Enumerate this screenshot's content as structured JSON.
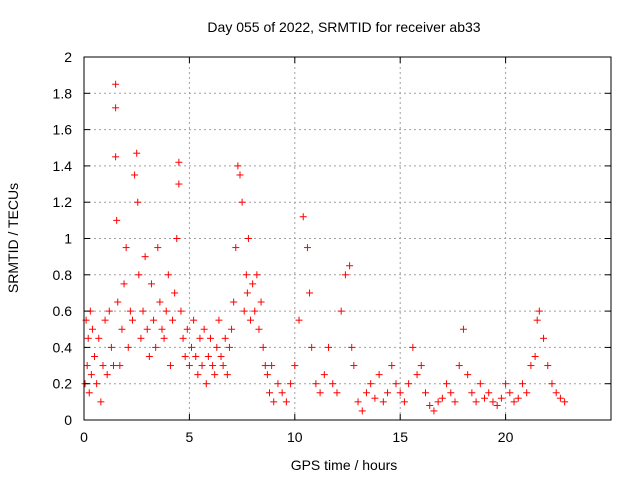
{
  "chart_data": {
    "type": "scatter",
    "title": "Day 055 of 2022, SRMTID for receiver ab33",
    "xlabel": "GPS time / hours",
    "ylabel": "SRMTID / TECUs",
    "xlim": [
      0,
      25
    ],
    "ylim": [
      0,
      2
    ],
    "xticks": [
      0,
      5,
      10,
      15,
      20
    ],
    "xtick_labels": [
      "0",
      "5",
      "10",
      "15",
      "20"
    ],
    "yticks": [
      0,
      0.2,
      0.4,
      0.6,
      0.8,
      1.0,
      1.2,
      1.4,
      1.6,
      1.8,
      2.0
    ],
    "ytick_labels": [
      "0",
      "0.2",
      "0.4",
      "0.6",
      "0.8",
      "1",
      "1.2",
      "1.4",
      "1.6",
      "1.8",
      "2"
    ],
    "grid": true,
    "marker": "+",
    "color": "#ff0000",
    "series": [
      {
        "name": "SRMTID",
        "x": [
          0.05,
          0.1,
          0.15,
          0.2,
          0.25,
          0.3,
          0.35,
          0.4,
          0.5,
          0.6,
          0.7,
          0.8,
          0.9,
          1.0,
          1.1,
          1.2,
          1.3,
          1.4,
          1.5,
          1.5,
          1.5,
          1.55,
          1.6,
          1.7,
          1.8,
          1.9,
          2.0,
          2.1,
          2.2,
          2.3,
          2.4,
          2.5,
          2.55,
          2.6,
          2.7,
          2.8,
          2.9,
          3.0,
          3.1,
          3.2,
          3.3,
          3.4,
          3.5,
          3.6,
          3.7,
          3.8,
          3.9,
          4.0,
          4.1,
          4.2,
          4.3,
          4.4,
          4.5,
          4.5,
          4.6,
          4.7,
          4.8,
          4.9,
          5.0,
          5.1,
          5.2,
          5.3,
          5.4,
          5.5,
          5.6,
          5.7,
          5.8,
          5.9,
          6.0,
          6.1,
          6.2,
          6.3,
          6.4,
          6.5,
          6.6,
          6.7,
          6.8,
          6.9,
          7.0,
          7.1,
          7.2,
          7.3,
          7.4,
          7.5,
          7.6,
          7.7,
          7.75,
          7.8,
          7.9,
          8.0,
          8.1,
          8.2,
          8.3,
          8.4,
          8.5,
          8.6,
          8.7,
          8.8,
          8.9,
          9.0,
          9.2,
          9.4,
          9.6,
          9.8,
          10.0,
          10.2,
          10.4,
          10.6,
          10.7,
          10.8,
          11.0,
          11.2,
          11.4,
          11.6,
          11.8,
          12.0,
          12.2,
          12.4,
          12.6,
          12.7,
          12.8,
          13.0,
          13.2,
          13.4,
          13.6,
          13.8,
          14.0,
          14.2,
          14.4,
          14.6,
          14.8,
          15.0,
          15.2,
          15.4,
          15.6,
          15.8,
          16.0,
          16.2,
          16.4,
          16.6,
          16.8,
          17.0,
          17.2,
          17.4,
          17.6,
          17.8,
          18.0,
          18.2,
          18.4,
          18.6,
          18.8,
          19.0,
          19.2,
          19.4,
          19.6,
          19.8,
          20.0,
          20.2,
          20.4,
          20.6,
          20.8,
          21.0,
          21.2,
          21.4,
          21.5,
          21.6,
          21.8,
          22.0,
          22.2,
          22.4,
          22.6,
          22.8
        ],
        "y": [
          0.2,
          0.55,
          0.3,
          0.45,
          0.15,
          0.6,
          0.25,
          0.5,
          0.35,
          0.2,
          0.45,
          0.1,
          0.3,
          0.55,
          0.25,
          0.6,
          0.4,
          0.3,
          1.85,
          1.72,
          1.45,
          1.1,
          0.65,
          0.3,
          0.5,
          0.75,
          0.95,
          0.4,
          0.6,
          0.55,
          1.35,
          1.47,
          1.2,
          0.8,
          0.45,
          0.6,
          0.9,
          0.5,
          0.35,
          0.75,
          0.55,
          0.4,
          0.95,
          0.65,
          0.5,
          0.45,
          0.6,
          0.8,
          0.3,
          0.55,
          0.7,
          1.0,
          1.42,
          1.3,
          0.6,
          0.45,
          0.35,
          0.5,
          0.3,
          0.4,
          0.55,
          0.35,
          0.25,
          0.45,
          0.3,
          0.5,
          0.2,
          0.35,
          0.45,
          0.3,
          0.25,
          0.4,
          0.55,
          0.35,
          0.3,
          0.45,
          0.25,
          0.4,
          0.5,
          0.65,
          0.95,
          1.4,
          1.35,
          1.2,
          0.6,
          0.8,
          0.7,
          1.0,
          0.55,
          0.75,
          0.6,
          0.8,
          0.5,
          0.65,
          0.4,
          0.3,
          0.25,
          0.15,
          0.3,
          0.1,
          0.2,
          0.15,
          0.1,
          0.2,
          0.3,
          0.55,
          1.12,
          0.95,
          0.7,
          0.4,
          0.2,
          0.15,
          0.25,
          0.4,
          0.2,
          0.15,
          0.6,
          0.8,
          0.85,
          0.4,
          0.3,
          0.1,
          0.05,
          0.15,
          0.2,
          0.12,
          0.25,
          0.1,
          0.15,
          0.3,
          0.2,
          0.15,
          0.1,
          0.2,
          0.4,
          0.25,
          0.3,
          0.15,
          0.08,
          0.05,
          0.1,
          0.12,
          0.2,
          0.15,
          0.1,
          0.3,
          0.5,
          0.25,
          0.15,
          0.1,
          0.2,
          0.12,
          0.15,
          0.1,
          0.08,
          0.12,
          0.2,
          0.15,
          0.1,
          0.12,
          0.2,
          0.15,
          0.3,
          0.35,
          0.55,
          0.6,
          0.45,
          0.3,
          0.2,
          0.15,
          0.12,
          0.1
        ]
      }
    ]
  }
}
